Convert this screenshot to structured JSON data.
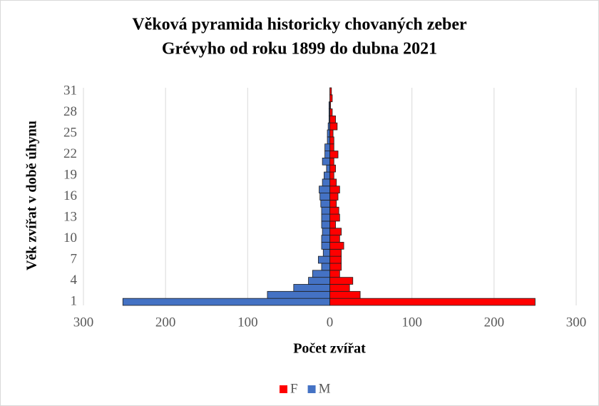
{
  "chart_data": {
    "type": "pyramid",
    "title": [
      "Věková pyramida historicky chovaných zeber",
      "Grévyho od roku 1899 do dubna 2021"
    ],
    "x_label": "Počet zvířat",
    "y_label": "Věk zvířat v době úhynu",
    "categories": [
      1,
      null,
      null,
      4,
      null,
      null,
      7,
      null,
      null,
      10,
      null,
      null,
      13,
      null,
      null,
      16,
      null,
      null,
      19,
      null,
      null,
      22,
      null,
      null,
      25,
      null,
      null,
      28,
      null,
      null,
      31
    ],
    "series": [
      {
        "name": "F",
        "color": "#ff0000",
        "values": [
          250,
          37,
          24,
          28,
          12,
          14,
          14,
          14,
          17,
          12,
          14,
          7,
          12,
          11,
          8,
          10,
          12,
          8,
          5,
          7,
          5,
          10,
          5,
          5,
          4,
          9,
          7,
          3,
          1,
          3,
          2
        ]
      },
      {
        "name": "M",
        "color": "#4472c4",
        "values": [
          -252,
          -76,
          -44,
          -26,
          -21,
          -10,
          -14,
          -8,
          -10,
          -10,
          -9,
          -10,
          -10,
          -10,
          -11,
          -12,
          -13,
          -9,
          -7,
          -4,
          -9,
          -6,
          -6,
          -3,
          -3,
          -2,
          -1,
          -1,
          -1,
          0,
          0
        ]
      }
    ],
    "xlim": [
      -300,
      300
    ],
    "xticks": [
      {
        "value": -300,
        "label": "300"
      },
      {
        "value": -200,
        "label": "200"
      },
      {
        "value": -100,
        "label": "100"
      },
      0,
      100,
      200,
      300
    ],
    "grid": true,
    "legend": "bottom"
  }
}
